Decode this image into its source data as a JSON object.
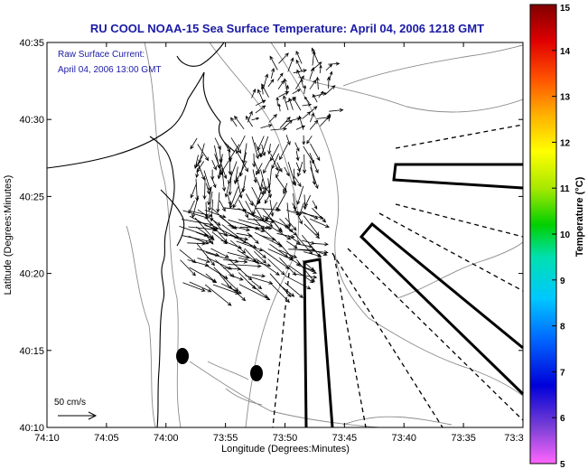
{
  "chart_data": {
    "type": "scatter",
    "title": "RU COOL  NOAA-15  Sea Surface Temperature:  April 04, 2006 1218 GMT",
    "annotations": [
      "Raw Surface Current:",
      "April 04, 2006 13:00 GMT"
    ],
    "xlabel": "Longitude (Degrees:Minutes)",
    "ylabel": "Latitude (Degrees:Minutes)",
    "x_ticks": [
      "74:10",
      "74:05",
      "74:00",
      "73:55",
      "73:50",
      "73:45",
      "73:40",
      "73:35",
      "73:3"
    ],
    "y_ticks": [
      "40:35",
      "40:30",
      "40:25",
      "40:20",
      "40:15",
      "40:10"
    ],
    "xlim_minutes_west": [
      -10,
      30
    ],
    "ylim_lat": [
      "40:10",
      "40:35"
    ],
    "scale_label": "50 cm/s",
    "markers": [
      {
        "lon": "73:58.9",
        "lat": "40:14.6"
      },
      {
        "lon": "73:52.4",
        "lat": "40:13.5"
      }
    ],
    "colorbar": {
      "label": "Temperature (°C)",
      "ticks": [
        "5",
        "6",
        "7",
        "8",
        "9",
        "10",
        "11",
        "12",
        "13",
        "14",
        "15"
      ],
      "range": [
        5,
        15
      ],
      "colors": [
        "#ff66ff",
        "#7a3fd6",
        "#0000d8",
        "#0066ff",
        "#00c8ff",
        "#00e0b0",
        "#00d000",
        "#a8e800",
        "#ffff00",
        "#ffb000",
        "#ff5000",
        "#e00000",
        "#800000"
      ]
    }
  }
}
